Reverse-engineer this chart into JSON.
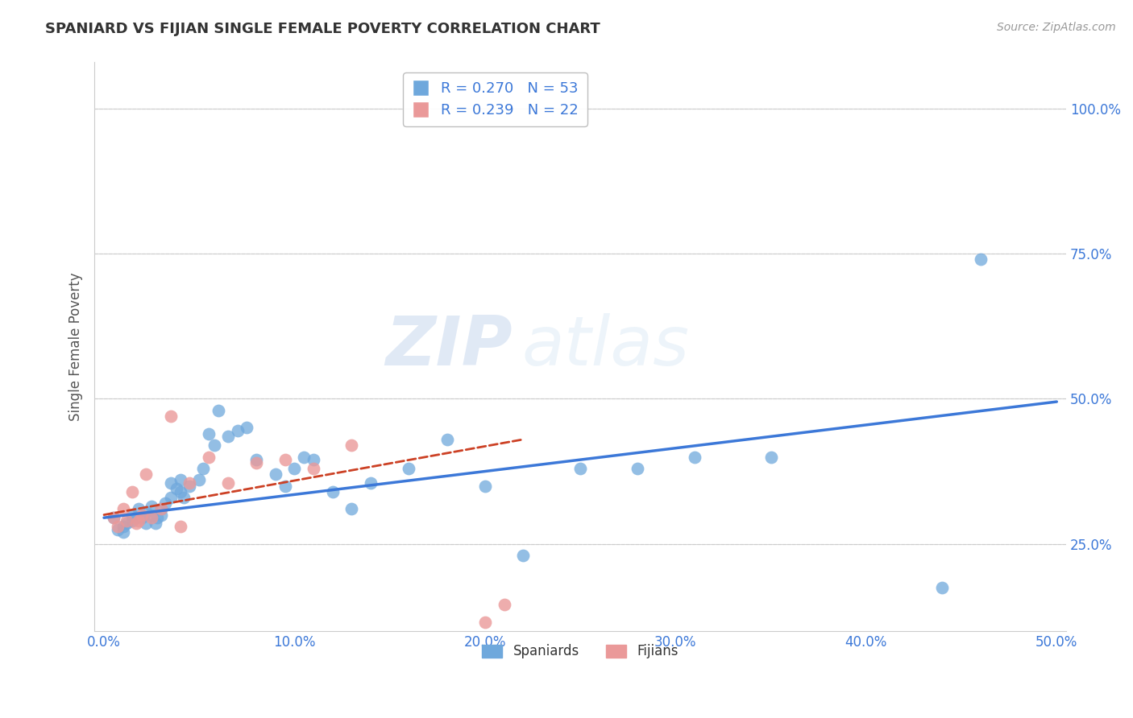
{
  "title": "SPANIARD VS FIJIAN SINGLE FEMALE POVERTY CORRELATION CHART",
  "source": "Source: ZipAtlas.com",
  "xlabel_ticks": [
    "0.0%",
    "10.0%",
    "20.0%",
    "30.0%",
    "40.0%",
    "50.0%"
  ],
  "ylabel_ticks": [
    "25.0%",
    "50.0%",
    "75.0%",
    "100.0%"
  ],
  "ytick_vals": [
    0.25,
    0.5,
    0.75,
    1.0
  ],
  "xlim": [
    -0.005,
    0.505
  ],
  "ylim": [
    0.1,
    1.08
  ],
  "ylabel": "Single Female Poverty",
  "legend_label1": "Spaniards",
  "legend_label2": "Fijians",
  "r1": 0.27,
  "n1": 53,
  "r2": 0.239,
  "n2": 22,
  "spaniards_color": "#6fa8dc",
  "fijians_color": "#ea9999",
  "trend1_color": "#3c78d8",
  "trend2_color": "#cc4125",
  "watermark_zip": "ZIP",
  "watermark_atlas": "atlas",
  "spaniards_x": [
    0.005,
    0.007,
    0.01,
    0.01,
    0.012,
    0.015,
    0.015,
    0.017,
    0.018,
    0.02,
    0.022,
    0.022,
    0.025,
    0.025,
    0.027,
    0.028,
    0.03,
    0.03,
    0.032,
    0.035,
    0.035,
    0.038,
    0.04,
    0.04,
    0.042,
    0.045,
    0.05,
    0.052,
    0.055,
    0.058,
    0.06,
    0.065,
    0.07,
    0.075,
    0.08,
    0.09,
    0.095,
    0.1,
    0.105,
    0.11,
    0.12,
    0.13,
    0.14,
    0.16,
    0.18,
    0.2,
    0.22,
    0.25,
    0.28,
    0.31,
    0.35,
    0.44,
    0.46
  ],
  "spaniards_y": [
    0.295,
    0.275,
    0.28,
    0.27,
    0.285,
    0.29,
    0.3,
    0.295,
    0.31,
    0.295,
    0.305,
    0.285,
    0.3,
    0.315,
    0.285,
    0.295,
    0.31,
    0.3,
    0.32,
    0.33,
    0.355,
    0.345,
    0.34,
    0.36,
    0.33,
    0.35,
    0.36,
    0.38,
    0.44,
    0.42,
    0.48,
    0.435,
    0.445,
    0.45,
    0.395,
    0.37,
    0.35,
    0.38,
    0.4,
    0.395,
    0.34,
    0.31,
    0.355,
    0.38,
    0.43,
    0.35,
    0.23,
    0.38,
    0.38,
    0.4,
    0.4,
    0.175,
    0.74
  ],
  "fijians_x": [
    0.005,
    0.007,
    0.01,
    0.012,
    0.015,
    0.017,
    0.018,
    0.02,
    0.022,
    0.025,
    0.03,
    0.035,
    0.04,
    0.045,
    0.055,
    0.065,
    0.08,
    0.095,
    0.11,
    0.13,
    0.2,
    0.21
  ],
  "fijians_y": [
    0.295,
    0.28,
    0.31,
    0.29,
    0.34,
    0.285,
    0.29,
    0.3,
    0.37,
    0.295,
    0.31,
    0.47,
    0.28,
    0.355,
    0.4,
    0.355,
    0.39,
    0.395,
    0.38,
    0.42,
    0.115,
    0.145
  ],
  "trend1_x0": 0.0,
  "trend1_y0": 0.295,
  "trend1_x1": 0.5,
  "trend1_y1": 0.495,
  "trend2_x0": 0.0,
  "trend2_y0": 0.3,
  "trend2_x1": 0.22,
  "trend2_y1": 0.43
}
